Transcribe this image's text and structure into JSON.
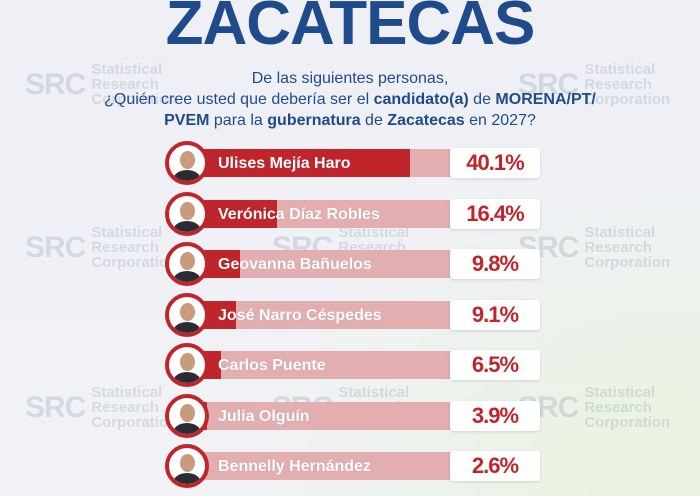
{
  "title": "ZACATECAS",
  "question": {
    "line1": "De las siguientes personas,",
    "p1": "¿Quién cree usted que debería ser el ",
    "b1": "candidato(a)",
    "p2": " de ",
    "b2": "MORENA/PT/",
    "b3": "PVEM",
    "p3": " para la ",
    "b4": "gubernatura",
    "p4": " de ",
    "b5": "Zacatecas",
    "p5": " en 2027?"
  },
  "watermark": {
    "logo": "SRC",
    "line1": "Statistical",
    "line2": "Research",
    "line3": "Corporation"
  },
  "chart_data": {
    "type": "bar",
    "orientation": "horizontal",
    "title": "ZACATECAS",
    "categories": [
      "Ulises Mejía Haro",
      "Verónica Díaz Robles",
      "Geovanna Bañuelos",
      "José Narro Céspedes",
      "Carlos Puente",
      "Julia Olguín",
      "Bennelly Hernández"
    ],
    "values": [
      40.1,
      16.4,
      9.8,
      9.1,
      6.5,
      3.9,
      2.6
    ],
    "labels": [
      "40.1%",
      "16.4%",
      "9.8%",
      "9.1%",
      "6.5%",
      "3.9%",
      "2.6%"
    ],
    "xlim": [
      0,
      48
    ],
    "colors": {
      "fill": "#c0252b",
      "track": "#e3aeb0",
      "title": "#1f4a8c"
    }
  }
}
